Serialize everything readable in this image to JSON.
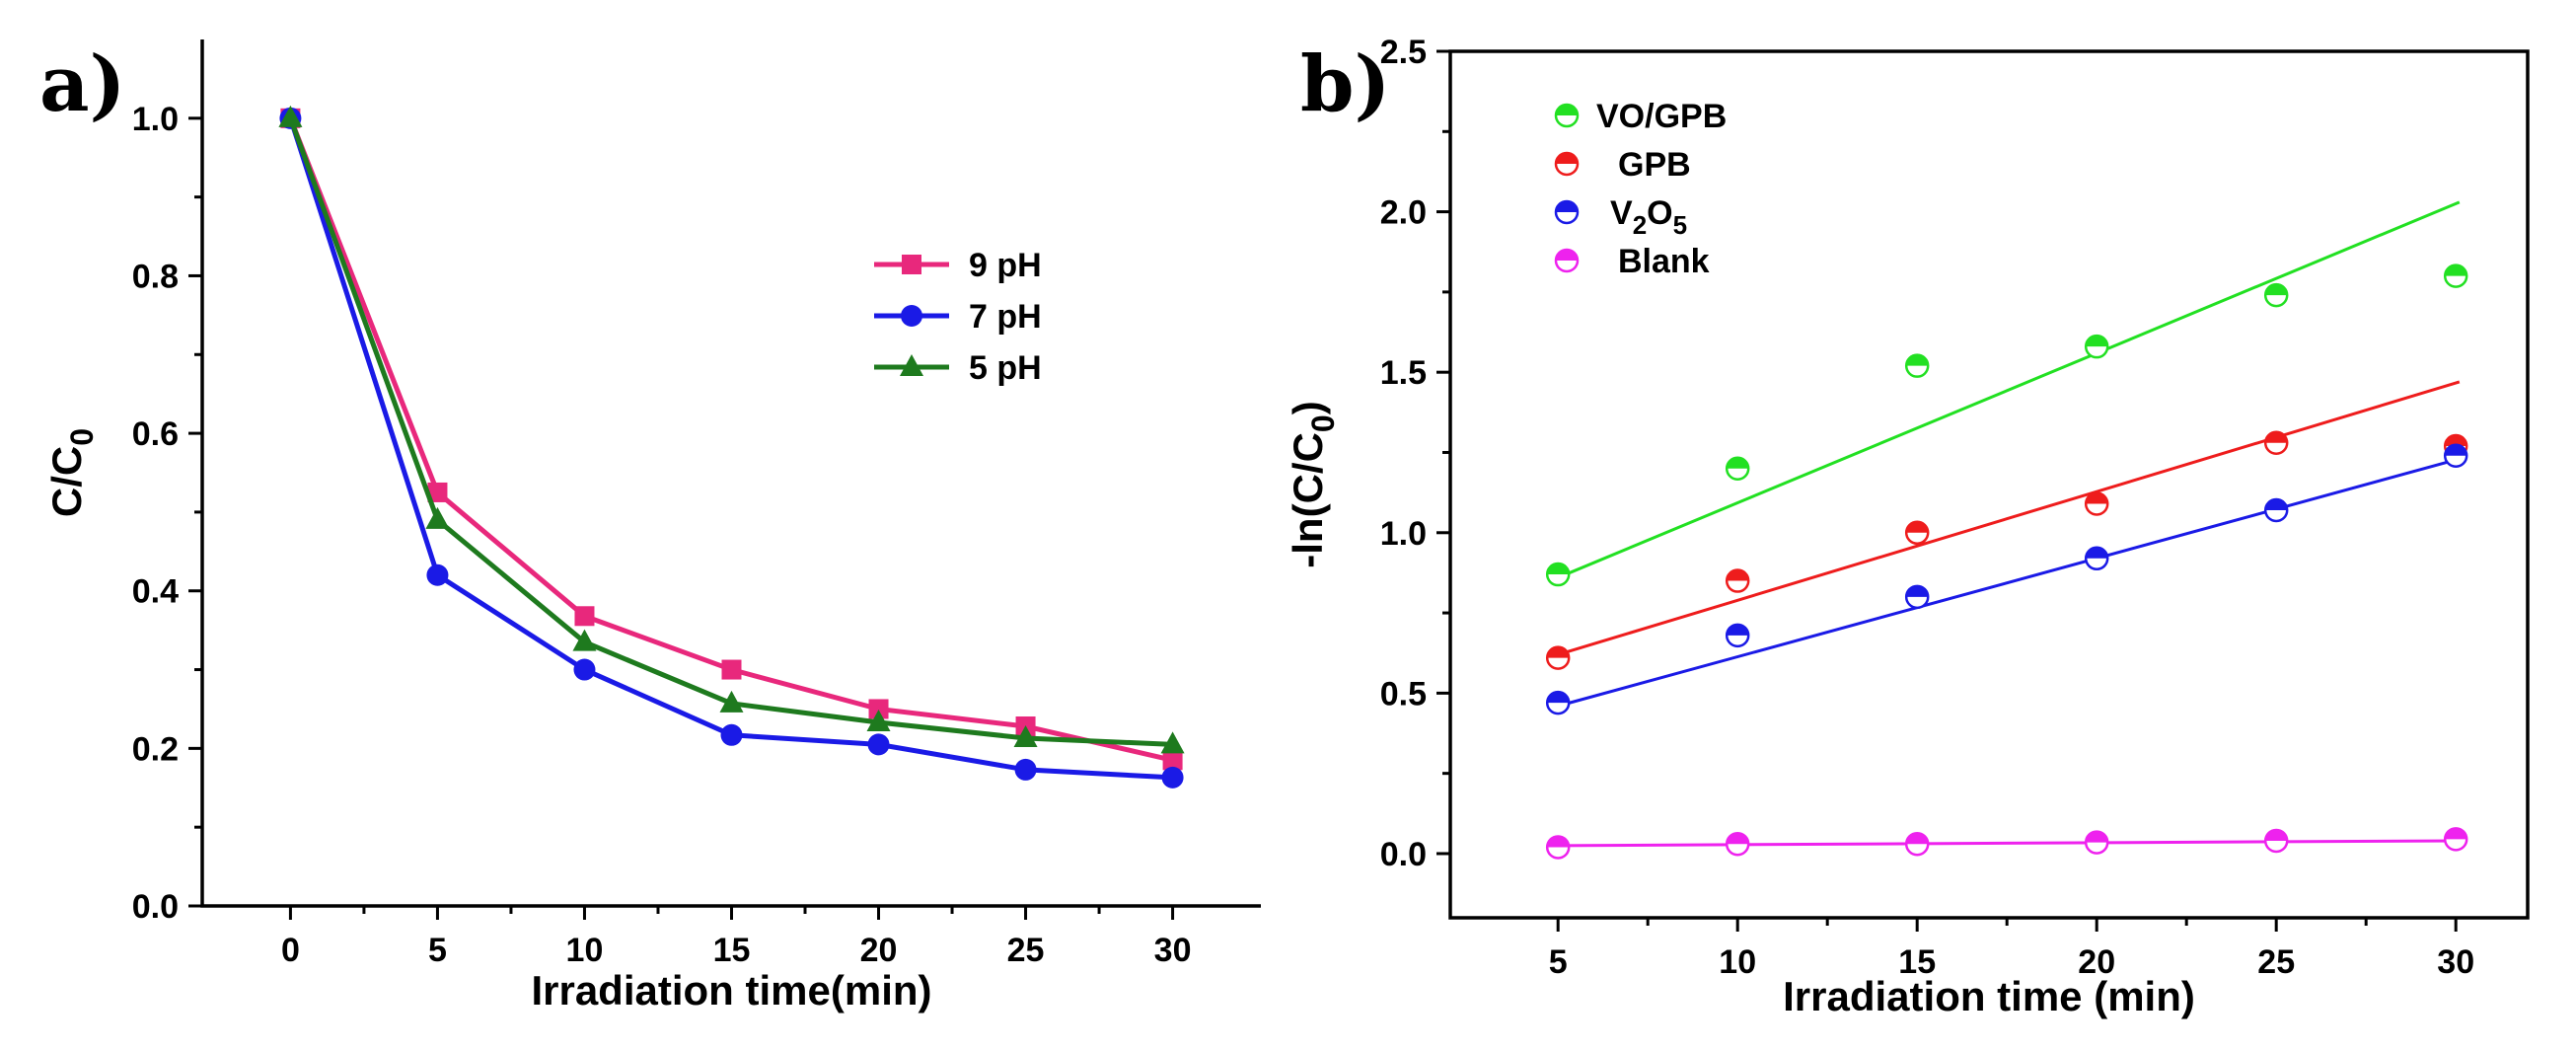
{
  "chart_data": [
    {
      "panel_label": "a)",
      "type": "line",
      "xlabel": "Irradiation time(min)",
      "ylabel": {
        "main": "C/C",
        "sub": "0"
      },
      "x": [
        0,
        5,
        10,
        15,
        20,
        25,
        30
      ],
      "xlim": [
        -3,
        33
      ],
      "ylim": [
        0,
        1.1
      ],
      "xticks": [
        "0",
        "5",
        "10",
        "15",
        "20",
        "25",
        "30"
      ],
      "yticks": [
        "0.0",
        "0.2",
        "0.4",
        "0.6",
        "0.8",
        "1.0"
      ],
      "legend_position": "upper-right",
      "series": [
        {
          "name": "9 pH",
          "color": "#e8287c",
          "marker": "square",
          "values": [
            1.0,
            0.525,
            0.368,
            0.3,
            0.25,
            0.228,
            0.185
          ]
        },
        {
          "name": "7 pH",
          "color": "#1a1ae6",
          "marker": "circle",
          "values": [
            1.0,
            0.42,
            0.3,
            0.217,
            0.205,
            0.173,
            0.163
          ]
        },
        {
          "name": "5 pH",
          "color": "#1e7a1e",
          "marker": "triangle",
          "values": [
            1.0,
            0.49,
            0.335,
            0.257,
            0.233,
            0.213,
            0.205
          ]
        }
      ]
    },
    {
      "panel_label": "b)",
      "type": "scatter",
      "xlabel": "Irradiation time (min)",
      "ylabel": {
        "main": "-ln(C/C",
        "sub": "0",
        "tail": ")"
      },
      "x": [
        5,
        10,
        15,
        20,
        25,
        30
      ],
      "xlim": [
        2,
        32
      ],
      "ylim": [
        -0.2,
        2.5
      ],
      "xticks": [
        "5",
        "10",
        "15",
        "20",
        "25",
        "30"
      ],
      "yticks": [
        "0.0",
        "0.5",
        "1.0",
        "1.5",
        "2.0",
        "2.5"
      ],
      "legend_position": "upper-left",
      "series": [
        {
          "name": "VO/GPB",
          "color": "#22e022",
          "values": [
            0.87,
            1.2,
            1.52,
            1.58,
            1.74,
            1.8
          ],
          "fit": [
            0.86,
            2.03
          ]
        },
        {
          "name": "GPB",
          "color": "#ee1c1c",
          "values": [
            0.61,
            0.85,
            1.0,
            1.09,
            1.28,
            1.27
          ],
          "fit": [
            0.62,
            1.47
          ]
        },
        {
          "name": "V2O5",
          "label_parts": {
            "a": "V",
            "sub1": "2",
            "b": "O",
            "sub2": "5"
          },
          "color": "#1a1ae6",
          "values": [
            0.47,
            0.68,
            0.8,
            0.92,
            1.07,
            1.24
          ],
          "fit": [
            0.46,
            1.23
          ]
        },
        {
          "name": "Blank",
          "color": "#ee22ee",
          "values": [
            0.02,
            0.03,
            0.03,
            0.035,
            0.04,
            0.045
          ],
          "fit": [
            0.025,
            0.04
          ]
        }
      ]
    }
  ]
}
